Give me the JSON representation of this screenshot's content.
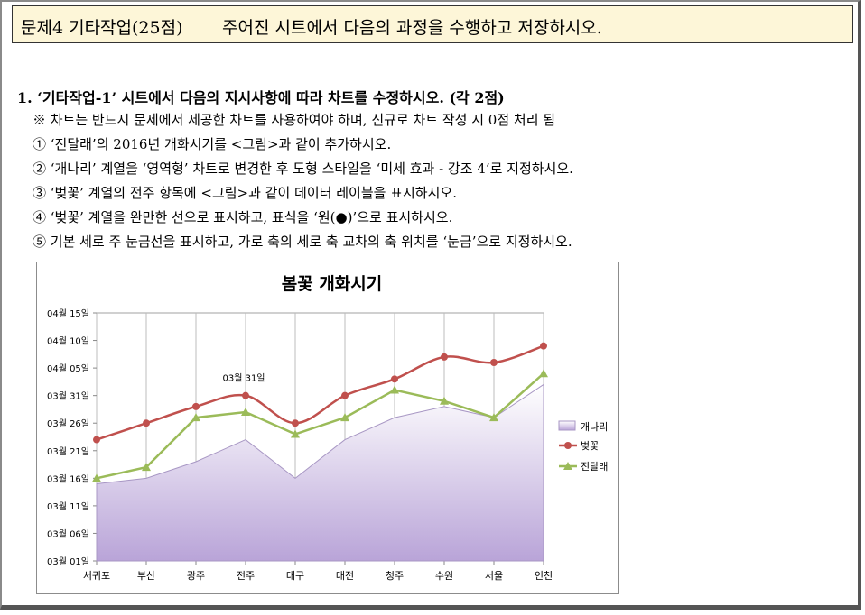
{
  "header": {
    "prefix": "문제4 기타작업(25점)",
    "text": "주어진 시트에서 다음의 과정을 수행하고 저장하시오."
  },
  "question": {
    "title": "1. ‘기타작업-1’ 시트에서 다음의 지시사항에 따라 차트를 수정하시오. (각 2점)",
    "note": "※ 차트는 반드시 문제에서 제공한 차트를 사용하여야 하며, 신규로 차트 작성 시 0점 처리 됨",
    "items": [
      "① ‘진달래’의 2016년 개화시기를 <그림>과 같이 추가하시오.",
      "② ‘개나리’ 계열을 ‘영역형’ 차트로 변경한 후 도형 스타일을 ‘미세 효과 - 강조 4’로 지정하시오.",
      "③ ‘벚꽃’ 계열의 전주 항목에 <그림>과 같이 데이터 레이블을 표시하시오.",
      "④ ‘벚꽃’ 계열을 완만한 선으로 표시하고, 표식을 ‘원(●)’으로 표시하시오.",
      "⑤ 기본 세로 주 눈금선을 표시하고, 가로 축의 세로 축 교차의 축 위치를 ‘눈금’으로 지정하시오."
    ]
  },
  "chart_data": {
    "type": "line",
    "title": "봄꽃 개화시기",
    "categories": [
      "서귀포",
      "부산",
      "광주",
      "전주",
      "대구",
      "대전",
      "청주",
      "수원",
      "서울",
      "인천"
    ],
    "y_tick_labels": [
      "03월 01일",
      "03월 06일",
      "03월 11일",
      "03월 16일",
      "03월 21일",
      "03월 26일",
      "03월 31일",
      "04월 05일",
      "04월 10일",
      "04월 15일"
    ],
    "ylim": [
      "03월 01일",
      "04월 15일"
    ],
    "grid": "vertical major gridlines",
    "legend_position": "right",
    "series": [
      {
        "name": "개나리",
        "type": "area",
        "color": "#b9a4d8",
        "values": [
          "03월 15일",
          "03월 16일",
          "03월 19일",
          "03월 23일",
          "03월 16일",
          "03월 23일",
          "03월 27일",
          "03월 29일",
          "03월 27일",
          "04월 02일"
        ]
      },
      {
        "name": "벚꽃",
        "type": "line",
        "color": "#c0504d",
        "marker": "circle",
        "values": [
          "03월 23일",
          "03월 26일",
          "03월 29일",
          "03월 31일",
          "03월 26일",
          "03월 31일",
          "04월 03일",
          "04월 07일",
          "04월 06일",
          "04월 09일"
        ]
      },
      {
        "name": "진달래",
        "type": "line",
        "color": "#9bbb59",
        "marker": "triangle",
        "values": [
          "03월 16일",
          "03월 18일",
          "03월 27일",
          "03월 28일",
          "03월 24일",
          "03월 27일",
          "04월 01일",
          "03월 30일",
          "03월 27일",
          "04월 04일"
        ]
      }
    ],
    "data_label": {
      "series": "벚꽃",
      "category": "전주",
      "text": "03월 31일"
    }
  }
}
